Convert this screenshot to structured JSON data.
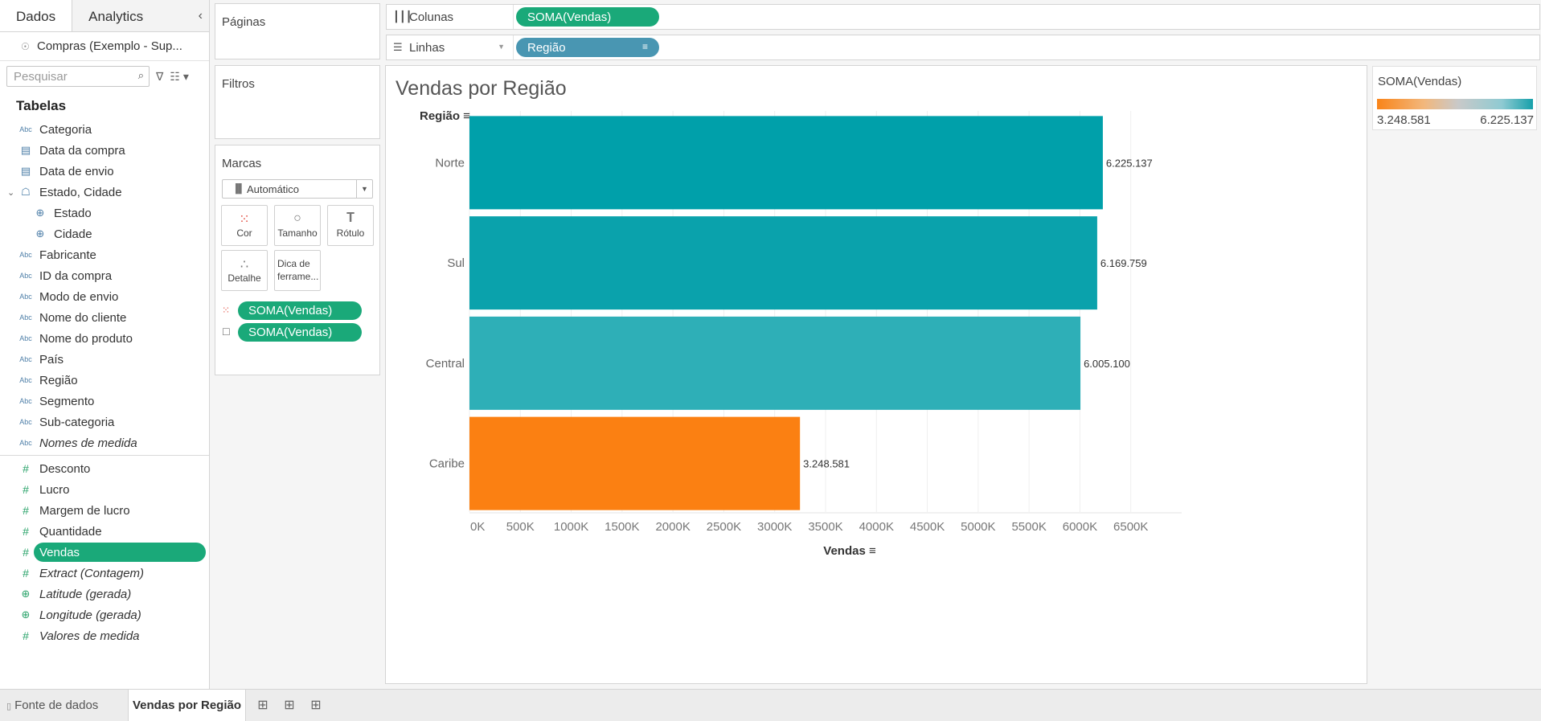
{
  "data_pane": {
    "tabs": [
      "Dados",
      "Analytics"
    ],
    "datasource": "Compras (Exemplo - Sup...",
    "search_placeholder": "Pesquisar",
    "tables_title": "Tabelas",
    "dimensions": [
      {
        "type": "Abc",
        "name": "Categoria"
      },
      {
        "type": "date",
        "name": "Data da compra"
      },
      {
        "type": "date",
        "name": "Data de envio"
      },
      {
        "type": "hier",
        "name": "Estado, Cidade"
      },
      {
        "type": "geo",
        "name": "Estado",
        "child": true
      },
      {
        "type": "geo",
        "name": "Cidade",
        "child": true
      },
      {
        "type": "Abc",
        "name": "Fabricante"
      },
      {
        "type": "Abc",
        "name": "ID da compra"
      },
      {
        "type": "Abc",
        "name": "Modo de envio"
      },
      {
        "type": "Abc",
        "name": "Nome do cliente"
      },
      {
        "type": "Abc",
        "name": "Nome do produto"
      },
      {
        "type": "Abc",
        "name": "País"
      },
      {
        "type": "Abc",
        "name": "Região"
      },
      {
        "type": "Abc",
        "name": "Segmento"
      },
      {
        "type": "Abc",
        "name": "Sub-categoria"
      },
      {
        "type": "Abc",
        "name": "Nomes de medida",
        "italic": true
      }
    ],
    "measures": [
      {
        "type": "#",
        "name": "Desconto"
      },
      {
        "type": "#",
        "name": "Lucro"
      },
      {
        "type": "#",
        "name": "Margem de lucro"
      },
      {
        "type": "#",
        "name": "Quantidade"
      },
      {
        "type": "#",
        "name": "Vendas",
        "selected": true
      },
      {
        "type": "#",
        "name": "Extract (Contagem)",
        "italic": true
      },
      {
        "type": "geo",
        "name": "Latitude (gerada)",
        "italic": true
      },
      {
        "type": "geo",
        "name": "Longitude (gerada)",
        "italic": true
      },
      {
        "type": "#",
        "name": "Valores de medida",
        "italic": true
      }
    ]
  },
  "cards": {
    "pages": "Páginas",
    "filters": "Filtros",
    "marks": "Marcas",
    "mark_type": "Automático",
    "buttons": {
      "color": "Cor",
      "size": "Tamanho",
      "label": "Rótulo",
      "detail": "Detalhe",
      "tooltip_line1": "Dica de",
      "tooltip_line2": "ferrame..."
    },
    "mark_pills": [
      "SOMA(Vendas)",
      "SOMA(Vendas)"
    ]
  },
  "shelves": {
    "columns_label": "Colunas",
    "columns_pill": "SOMA(Vendas)",
    "rows_label": "Linhas",
    "rows_pill": "Região"
  },
  "view": {
    "title": "Vendas por Região"
  },
  "legend": {
    "title": "SOMA(Vendas)",
    "min": "3.248.581",
    "max": "6.225.137"
  },
  "bottom_tabs": {
    "datasource": "Fonte de dados",
    "sheet": "Vendas por Região"
  },
  "colors": {
    "accent_green": "#1aa979",
    "pill_blue": "#4996b2",
    "bar_high": "#00a0aa",
    "bar_low": "#fb8012"
  },
  "chart_data": {
    "type": "bar",
    "orientation": "horizontal",
    "row_header": "Região",
    "xlabel": "Vendas",
    "categories": [
      "Norte",
      "Sul",
      "Central",
      "Caribe"
    ],
    "values": [
      6225137,
      6169759,
      6005100,
      3248581
    ],
    "value_labels": [
      "6.225.137",
      "6.169.759",
      "6.005.100",
      "3.248.581"
    ],
    "bar_colors": [
      "#00a0aa",
      "#0aa2ac",
      "#2eafb7",
      "#fb8012"
    ],
    "xlim": [
      0,
      7000000
    ],
    "x_ticks": [
      0,
      500000,
      1000000,
      1500000,
      2000000,
      2500000,
      3000000,
      3500000,
      4000000,
      4500000,
      5000000,
      5500000,
      6000000,
      6500000
    ],
    "x_tick_labels": [
      "0K",
      "500K",
      "1000K",
      "1500K",
      "2000K",
      "2500K",
      "3000K",
      "3500K",
      "4000K",
      "4500K",
      "5000K",
      "5500K",
      "6000K",
      "6500K"
    ],
    "grid": "vertical"
  }
}
